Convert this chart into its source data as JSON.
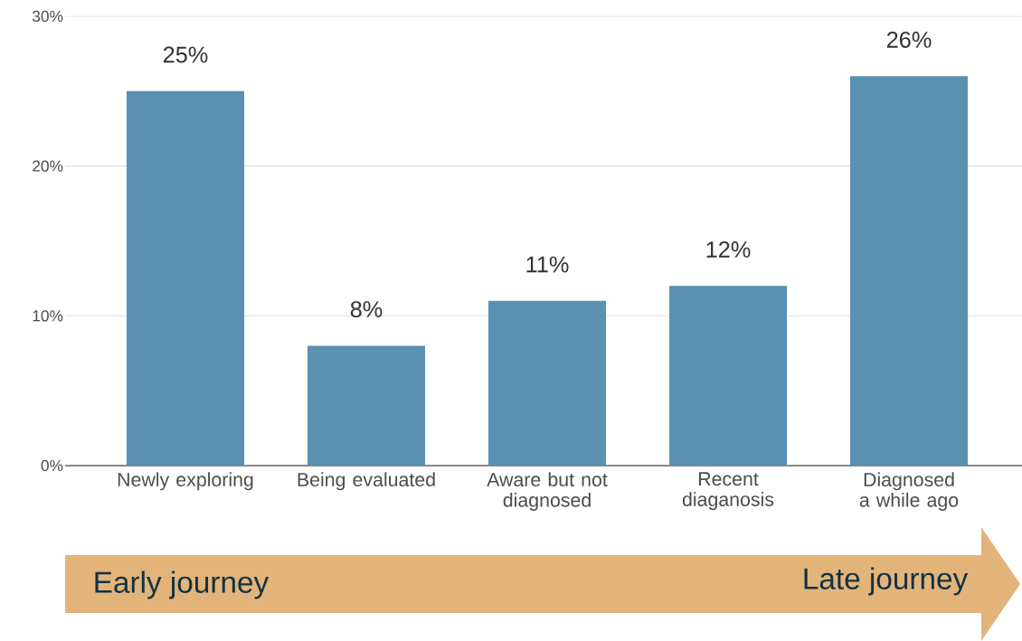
{
  "chart_data": {
    "type": "bar",
    "categories": [
      "Newly exploring",
      "Being evaluated",
      "Aware but not diagnosed",
      "Recent diaganosis",
      "Diagnosed a while ago"
    ],
    "values": [
      25,
      8,
      11,
      12,
      26
    ],
    "value_labels": [
      "25%",
      "8%",
      "11%",
      "12%",
      "26%"
    ],
    "color": "#5a91b0",
    "ylim": [
      0,
      30
    ],
    "yticks": [
      {
        "value": 0,
        "label": "0%"
      },
      {
        "value": 10,
        "label": "10%"
      },
      {
        "value": 20,
        "label": "20%"
      },
      {
        "value": 30,
        "label": "30%"
      }
    ],
    "grid": "y",
    "annotations": [
      "Early journey",
      "Late journey"
    ]
  }
}
